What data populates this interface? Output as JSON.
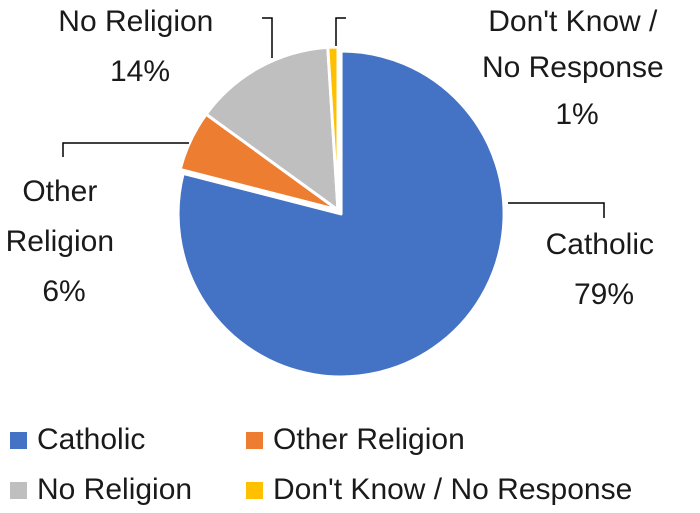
{
  "chart_data": {
    "type": "pie",
    "title": "",
    "categories": [
      "Catholic",
      "Other Religion",
      "No Religion",
      "Don't Know / No Response"
    ],
    "values": [
      79,
      6,
      14,
      1
    ],
    "unit": "%",
    "slice_labels": [
      {
        "lines": [
          "Catholic",
          "79%"
        ]
      },
      {
        "lines": [
          "Other",
          "Religion",
          "6%"
        ]
      },
      {
        "lines": [
          "No Religion",
          "14%"
        ]
      },
      {
        "lines": [
          "Don't Know /",
          "No Response",
          "1%"
        ]
      }
    ],
    "colors": [
      "#4472C4",
      "#ED7D31",
      "#BFBFBF",
      "#FFC000"
    ],
    "start_angle_deg": 0,
    "direction": "clockwise",
    "exploded_slice": "Catholic",
    "legend": {
      "position": "bottom",
      "entries": [
        "Catholic",
        "Other Religion",
        "No Religion",
        "Don't Know / No Response"
      ]
    }
  }
}
